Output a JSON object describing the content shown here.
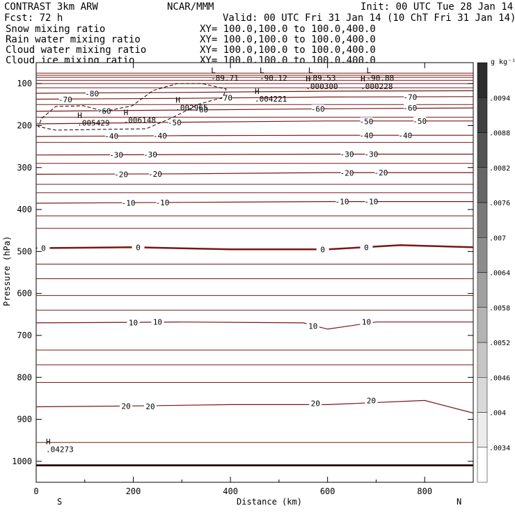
{
  "header": {
    "model": "CONTRAST  3km ARW",
    "center": "NCAR/MMM",
    "init": "Init: 00 UTC Tue 28 Jan 14",
    "fcst": "Fcst:   72 h",
    "valid": "Valid: 00 UTC Fri 31 Jan 14 (10 ChT Fri 31 Jan 14)"
  },
  "fields": [
    {
      "name": "Snow mixing ratio",
      "xy": "XY= 100.0,100.0 to 100.0,400.0",
      "color": "#000000"
    },
    {
      "name": "Rain water mixing ratio",
      "xy": "XY= 100.0,100.0 to 100.0,400.0",
      "color": "#ff0000"
    },
    {
      "name": "Cloud water mixing ratio",
      "xy": "XY= 100.0,100.0 to 100.0,400.0",
      "color": "#0000ff"
    },
    {
      "name": "Cloud ice mixing ratio",
      "xy": "XY= 100.0,100.0 to 100.0,400.0",
      "color": "#000000"
    }
  ],
  "chart_data": {
    "type": "contour",
    "xlabel": "Distance (km)",
    "ylabel": "Pressure (hPa)",
    "xlim": [
      0,
      900
    ],
    "ylim": [
      1050,
      50
    ],
    "x_ticks": [
      0,
      200,
      400,
      600,
      800
    ],
    "y_ticks": [
      100,
      200,
      300,
      400,
      500,
      600,
      700,
      800,
      900,
      1000
    ],
    "endpoints": {
      "left": "S",
      "right": "N"
    },
    "contour_color": "#7a1515",
    "temperature_contours": [
      {
        "value": -80,
        "label_text": "-80",
        "points": [
          [
            0,
            123
          ],
          [
            300,
            121
          ],
          [
            600,
            118
          ],
          [
            900,
            117
          ]
        ],
        "labels": [
          [
            115,
            124
          ]
        ]
      },
      {
        "value": -70,
        "label_text": "-70",
        "points": [
          [
            0,
            137
          ],
          [
            300,
            135
          ],
          [
            600,
            132
          ],
          [
            900,
            131
          ]
        ],
        "labels": [
          [
            60,
            138
          ],
          [
            390,
            134
          ],
          [
            770,
            132
          ]
        ]
      },
      {
        "value": -60,
        "label_text": "-60",
        "points": [
          [
            0,
            166
          ],
          [
            300,
            163
          ],
          [
            600,
            160
          ],
          [
            900,
            158
          ]
        ],
        "labels": [
          [
            140,
            165
          ],
          [
            340,
            162
          ],
          [
            580,
            160
          ],
          [
            770,
            158
          ]
        ]
      },
      {
        "value": -50,
        "label_text": "-50",
        "points": [
          [
            0,
            196
          ],
          [
            300,
            192
          ],
          [
            600,
            189
          ],
          [
            900,
            189
          ]
        ],
        "labels": [
          [
            285,
            193
          ],
          [
            680,
            190
          ],
          [
            790,
            189
          ]
        ]
      },
      {
        "value": -40,
        "label_text": "-40",
        "points": [
          [
            0,
            226
          ],
          [
            300,
            224
          ],
          [
            600,
            223
          ],
          [
            900,
            223
          ]
        ],
        "labels": [
          [
            155,
            225
          ],
          [
            255,
            224
          ],
          [
            680,
            223
          ],
          [
            760,
            223
          ]
        ]
      },
      {
        "value": -30,
        "label_text": "-30",
        "points": [
          [
            0,
            270
          ],
          [
            300,
            269
          ],
          [
            600,
            268
          ],
          [
            900,
            268
          ]
        ],
        "labels": [
          [
            165,
            270
          ],
          [
            235,
            269
          ],
          [
            640,
            268
          ],
          [
            690,
            268
          ]
        ]
      },
      {
        "value": -20,
        "label_text": "-20",
        "points": [
          [
            0,
            316
          ],
          [
            300,
            315
          ],
          [
            600,
            312
          ],
          [
            900,
            312
          ]
        ],
        "labels": [
          [
            175,
            316
          ],
          [
            245,
            315
          ],
          [
            640,
            313
          ],
          [
            710,
            312
          ]
        ]
      },
      {
        "value": -10,
        "label_text": "-10",
        "points": [
          [
            0,
            385
          ],
          [
            300,
            383
          ],
          [
            600,
            381
          ],
          [
            900,
            381
          ]
        ],
        "labels": [
          [
            190,
            384
          ],
          [
            260,
            383
          ],
          [
            630,
            381
          ],
          [
            690,
            381
          ]
        ]
      },
      {
        "value": 0,
        "label_text": "0",
        "points": [
          [
            0,
            492
          ],
          [
            200,
            490
          ],
          [
            400,
            495
          ],
          [
            600,
            495
          ],
          [
            750,
            485
          ],
          [
            900,
            490
          ]
        ],
        "labels": [
          [
            15,
            492
          ],
          [
            210,
            490
          ],
          [
            590,
            495
          ],
          [
            680,
            490
          ]
        ],
        "bold": true
      },
      {
        "value": 10,
        "label_text": "10",
        "points": [
          [
            0,
            670
          ],
          [
            300,
            668
          ],
          [
            550,
            670
          ],
          [
            600,
            685
          ],
          [
            700,
            668
          ],
          [
            900,
            668
          ]
        ],
        "labels": [
          [
            200,
            669
          ],
          [
            250,
            668
          ],
          [
            570,
            678
          ],
          [
            680,
            668
          ]
        ]
      },
      {
        "value": 20,
        "label_text": "20",
        "points": [
          [
            0,
            870
          ],
          [
            200,
            868
          ],
          [
            400,
            865
          ],
          [
            600,
            865
          ],
          [
            800,
            855
          ],
          [
            900,
            885
          ]
        ],
        "labels": [
          [
            185,
            868
          ],
          [
            235,
            869
          ],
          [
            575,
            862
          ],
          [
            690,
            855
          ]
        ]
      }
    ],
    "plain_levels": [
      75,
      80,
      85,
      92,
      100,
      110,
      150,
      180,
      240,
      290,
      340,
      360,
      415,
      445,
      530,
      565,
      605,
      640,
      735,
      770,
      812,
      955,
      1008
    ],
    "cloud_ice_region": {
      "label": "dashed cloud-ice contour"
    },
    "extrema": [
      {
        "kind": "L",
        "x": 360,
        "p": 75,
        "value": "-89.71"
      },
      {
        "kind": "L",
        "x": 460,
        "p": 75,
        "value": "-90.12"
      },
      {
        "kind": "L",
        "x": 560,
        "p": 75,
        "value": "-89.53"
      },
      {
        "kind": "L",
        "x": 680,
        "p": 75,
        "value": "-90.88"
      },
      {
        "kind": "H",
        "x": 555,
        "p": 95,
        "value": ".000300"
      },
      {
        "kind": "H",
        "x": 668,
        "p": 95,
        "value": ".000228"
      },
      {
        "kind": "H",
        "x": 450,
        "p": 125,
        "value": ".004221"
      },
      {
        "kind": "H",
        "x": 287,
        "p": 145,
        "value": ".002965"
      },
      {
        "kind": "H",
        "x": 85,
        "p": 182,
        "value": ".005429"
      },
      {
        "kind": "H",
        "x": 180,
        "p": 175,
        "value": ".006148"
      },
      {
        "kind": "H",
        "x": 20,
        "p": 960,
        "value": ".04273",
        "color": "#0000ff"
      }
    ],
    "colorbar": {
      "unit": "g kg⁻¹",
      "levels": [
        ".0034",
        ".004",
        ".0046",
        ".0052",
        ".0058",
        ".0064",
        ".007",
        ".0076",
        ".0082",
        ".0088",
        ".0094"
      ]
    }
  }
}
